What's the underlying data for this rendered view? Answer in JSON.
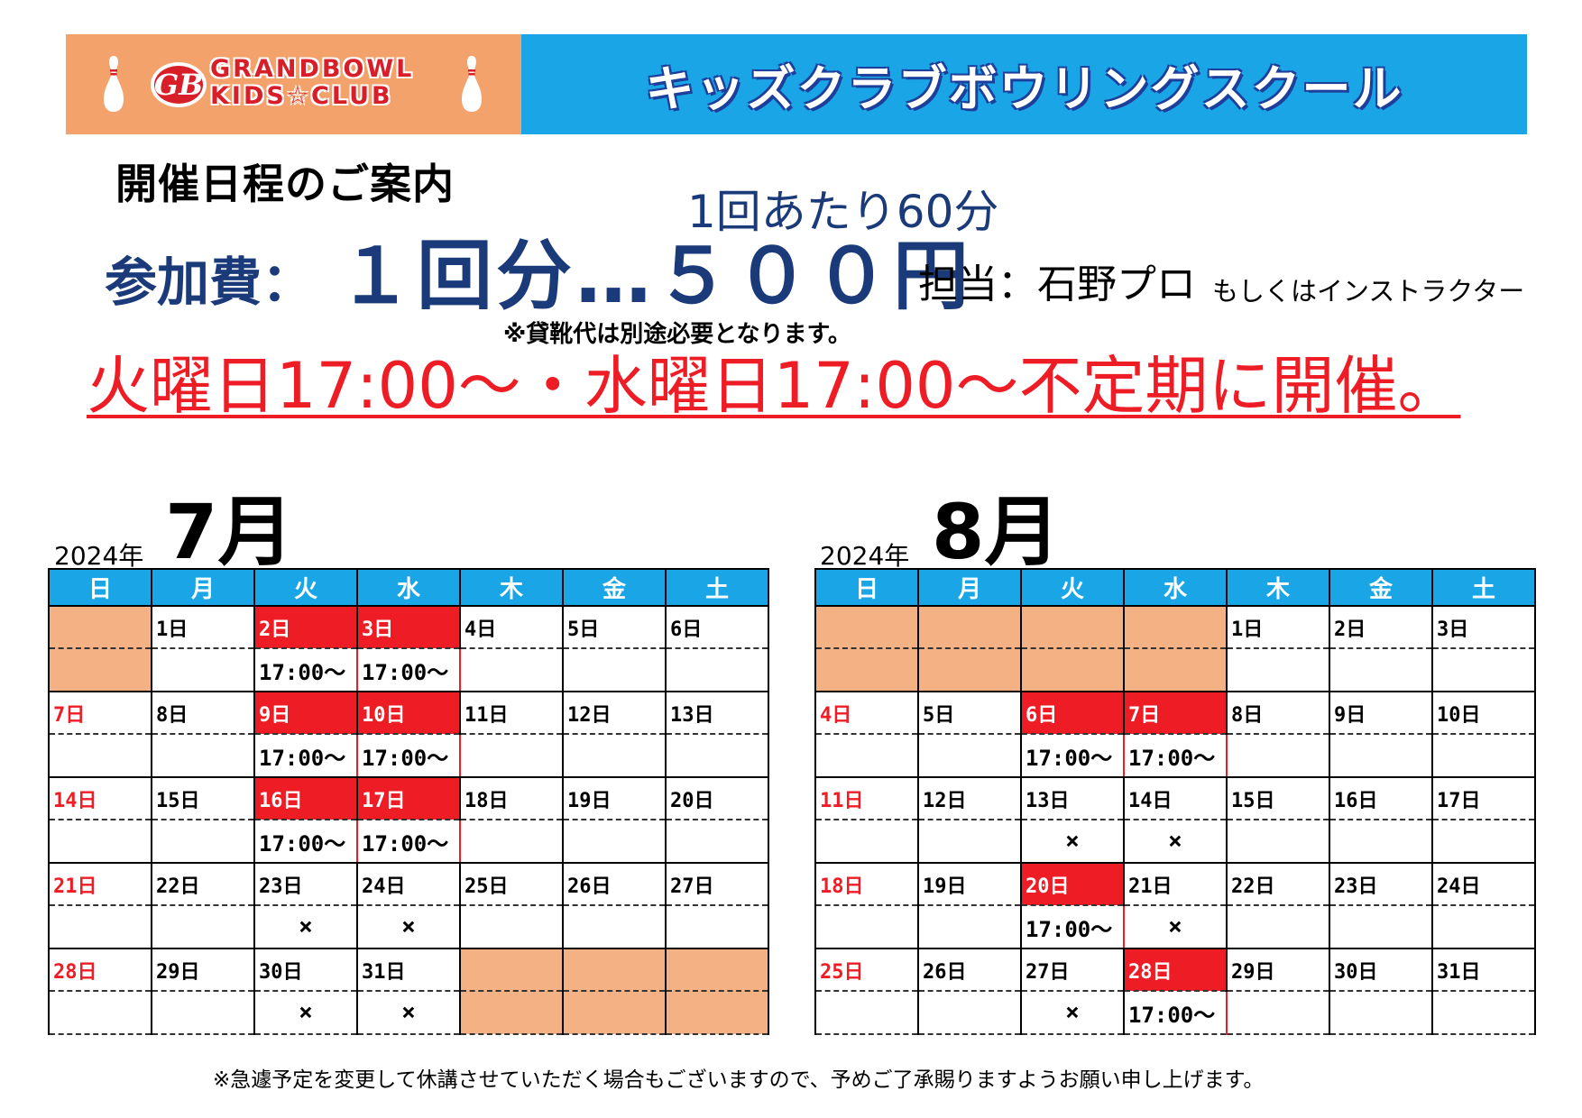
{
  "banner": {
    "logo_line1": "GRANDBOWL",
    "logo_line2": "KIDS☆CLUB",
    "title": "キッズクラブボウリングスクール",
    "colors": {
      "left_bg": "#f2a26a",
      "right_bg": "#1aa6e6",
      "logo_red": "#d81e28"
    }
  },
  "info": {
    "heading": "開催日程のご案内",
    "per_session": "1回あたり60分",
    "fee_label": "参加費：",
    "fee_value": "１回分…５００円",
    "instructor": "担当：石野プロ",
    "instructor_sub": "もしくはインストラクター",
    "shoe_note": "※貸靴代は別途必要となります。",
    "schedule": "火曜日17:00～・水曜日17:00～不定期に開催。"
  },
  "weekdays": [
    "日",
    "月",
    "火",
    "水",
    "木",
    "金",
    "土"
  ],
  "july": {
    "year": "2024年",
    "month": "7月",
    "weeks": [
      [
        {
          "t": "empty"
        },
        {
          "d": "1日"
        },
        {
          "d": "2日",
          "t": "event",
          "time": "17:00～"
        },
        {
          "d": "3日",
          "t": "event",
          "time": "17:00～"
        },
        {
          "d": "4日"
        },
        {
          "d": "5日"
        },
        {
          "d": "6日"
        }
      ],
      [
        {
          "d": "7日",
          "t": "sun"
        },
        {
          "d": "8日"
        },
        {
          "d": "9日",
          "t": "event",
          "time": "17:00～"
        },
        {
          "d": "10日",
          "t": "event",
          "time": "17:00～"
        },
        {
          "d": "11日"
        },
        {
          "d": "12日"
        },
        {
          "d": "13日"
        }
      ],
      [
        {
          "d": "14日",
          "t": "sun"
        },
        {
          "d": "15日"
        },
        {
          "d": "16日",
          "t": "event",
          "time": "17:00～"
        },
        {
          "d": "17日",
          "t": "event",
          "time": "17:00～"
        },
        {
          "d": "18日"
        },
        {
          "d": "19日"
        },
        {
          "d": "20日"
        }
      ],
      [
        {
          "d": "21日",
          "t": "sun"
        },
        {
          "d": "22日"
        },
        {
          "d": "23日",
          "mark": "×"
        },
        {
          "d": "24日",
          "mark": "×"
        },
        {
          "d": "25日"
        },
        {
          "d": "26日"
        },
        {
          "d": "27日"
        }
      ],
      [
        {
          "d": "28日",
          "t": "sun"
        },
        {
          "d": "29日"
        },
        {
          "d": "30日",
          "mark": "×"
        },
        {
          "d": "31日",
          "mark": "×"
        },
        {
          "t": "empty"
        },
        {
          "t": "empty"
        },
        {
          "t": "empty"
        }
      ]
    ]
  },
  "august": {
    "year": "2024年",
    "month": "8月",
    "weeks": [
      [
        {
          "t": "empty"
        },
        {
          "t": "empty"
        },
        {
          "t": "empty"
        },
        {
          "t": "empty"
        },
        {
          "d": "1日"
        },
        {
          "d": "2日"
        },
        {
          "d": "3日"
        }
      ],
      [
        {
          "d": "4日",
          "t": "sun"
        },
        {
          "d": "5日"
        },
        {
          "d": "6日",
          "t": "event",
          "time": "17:00～"
        },
        {
          "d": "7日",
          "t": "event",
          "time": "17:00～"
        },
        {
          "d": "8日"
        },
        {
          "d": "9日"
        },
        {
          "d": "10日"
        }
      ],
      [
        {
          "d": "11日",
          "t": "sun"
        },
        {
          "d": "12日"
        },
        {
          "d": "13日",
          "mark": "×"
        },
        {
          "d": "14日",
          "mark": "×"
        },
        {
          "d": "15日"
        },
        {
          "d": "16日"
        },
        {
          "d": "17日"
        }
      ],
      [
        {
          "d": "18日",
          "t": "sun"
        },
        {
          "d": "19日"
        },
        {
          "d": "20日",
          "t": "event",
          "time": "17:00～"
        },
        {
          "d": "21日",
          "mark": "×"
        },
        {
          "d": "22日"
        },
        {
          "d": "23日"
        },
        {
          "d": "24日"
        }
      ],
      [
        {
          "d": "25日",
          "t": "sun"
        },
        {
          "d": "26日"
        },
        {
          "d": "27日",
          "mark": "×"
        },
        {
          "d": "28日",
          "t": "event",
          "time": "17:00～"
        },
        {
          "d": "29日"
        },
        {
          "d": "30日"
        },
        {
          "d": "31日"
        }
      ]
    ]
  },
  "footer": {
    "note": "※急遽予定を変更して休講させていただく場合もございますので、予めご了承賜りますようお願い申し上げます。"
  }
}
